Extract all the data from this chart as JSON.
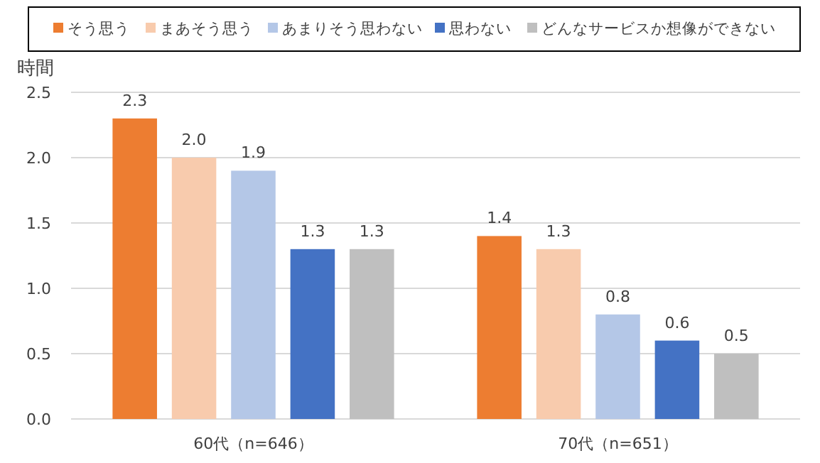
{
  "chart_data": {
    "type": "bar",
    "ylabel": "時間",
    "categories": [
      "60代（n=646）",
      "70代（n=651）"
    ],
    "series": [
      {
        "name": "そう思う",
        "color": "#ed7d31",
        "values": [
          2.3,
          1.4
        ],
        "value_labels": [
          "2.3",
          "1.4"
        ]
      },
      {
        "name": "まあそう思う",
        "color": "#f8cbad",
        "values": [
          2.0,
          1.3
        ],
        "value_labels": [
          "2.0",
          "1.3"
        ]
      },
      {
        "name": "あまりそう思わない",
        "color": "#b4c7e7",
        "values": [
          1.9,
          0.8
        ],
        "value_labels": [
          "1.9",
          "0.8"
        ]
      },
      {
        "name": "思わない",
        "color": "#4472c4",
        "values": [
          1.3,
          0.6
        ],
        "value_labels": [
          "1.3",
          "0.6"
        ]
      },
      {
        "name": "どんなサービスか想像ができない",
        "color": "#bfbfbf",
        "values": [
          1.3,
          0.5
        ],
        "value_labels": [
          "1.3",
          "0.5"
        ]
      }
    ],
    "ylim": [
      0,
      2.5
    ],
    "yticks": [
      {
        "value": 0,
        "label": "0.0"
      },
      {
        "value": 0.5,
        "label": "0.5"
      },
      {
        "value": 1,
        "label": "1.0"
      },
      {
        "value": 1.5,
        "label": "1.5"
      },
      {
        "value": 2,
        "label": "2.0"
      },
      {
        "value": 2.5,
        "label": "2.5"
      }
    ],
    "grid": "y",
    "legend": "top"
  }
}
